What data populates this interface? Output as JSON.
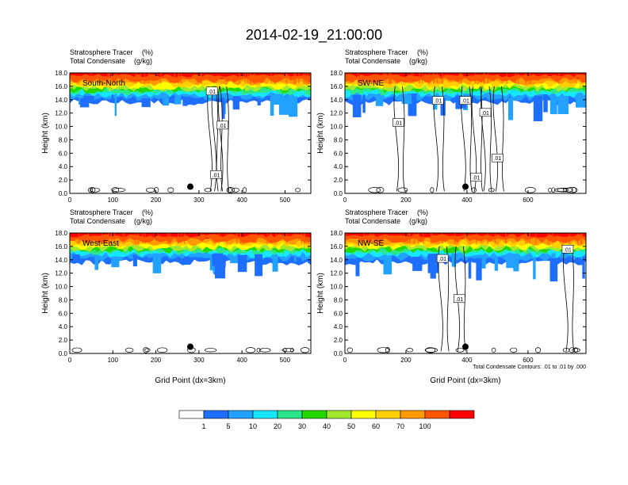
{
  "title": "2014-02-19_21:00:00",
  "colors": {
    "background": "#ffffff",
    "cross_section_label": "#ffffff",
    "contour_line": "#000000",
    "marker": "#000000"
  },
  "chart_data": [
    {
      "type": "heatmap",
      "panel": "top-left",
      "label": "South-North",
      "subtitle_1": "Stratosphere Tracer",
      "unit_1": "(%)",
      "subtitle_2": "Total Condensate",
      "unit_2": "(g/kg)",
      "ylabel": "Height (km)",
      "xlabel": "",
      "xlim": [
        0,
        560
      ],
      "xticks": [
        "0",
        "100",
        "200",
        "300",
        "400",
        "500"
      ],
      "ylim": [
        0,
        18
      ],
      "yticks": [
        "0.0",
        "2.0",
        "4.0",
        "6.0",
        "8.0",
        "10.0",
        "12.0",
        "14.0",
        "16.0",
        "18.0"
      ],
      "marker": {
        "x": 280,
        "y": 1.0
      },
      "contour_labels": [
        {
          "text": ".01",
          "x": 330,
          "y": 15.3
        },
        {
          "text": ".01",
          "x": 355,
          "y": 10.2
        },
        {
          "text": ".01",
          "x": 340,
          "y": 2.8
        }
      ]
    },
    {
      "type": "heatmap",
      "panel": "top-right",
      "label": "SW-NE",
      "subtitle_1": "Stratosphere Tracer",
      "unit_1": "(%)",
      "subtitle_2": "Total Condensate",
      "unit_2": "(g/kg)",
      "ylabel": "Height (km)",
      "xlabel": "",
      "xlim": [
        0,
        790
      ],
      "xticks": [
        "0",
        "200",
        "400",
        "600"
      ],
      "ylim": [
        0,
        18
      ],
      "yticks": [
        "0.0",
        "2.0",
        "4.0",
        "6.0",
        "8.0",
        "10.0",
        "12.0",
        "14.0",
        "16.0",
        "18.0"
      ],
      "marker": {
        "x": 395,
        "y": 1.0
      },
      "contour_labels": [
        {
          "text": ".01",
          "x": 305,
          "y": 13.9
        },
        {
          "text": ".01",
          "x": 395,
          "y": 13.9
        },
        {
          "text": ".01",
          "x": 175,
          "y": 10.6
        },
        {
          "text": ".01",
          "x": 460,
          "y": 12.1
        },
        {
          "text": ".01",
          "x": 500,
          "y": 5.3
        },
        {
          "text": ".01",
          "x": 430,
          "y": 2.4
        }
      ]
    },
    {
      "type": "heatmap",
      "panel": "bottom-left",
      "label": "West-East",
      "subtitle_1": "Stratosphere Tracer",
      "unit_1": "(%)",
      "subtitle_2": "Total Condensate",
      "unit_2": "(g/kg)",
      "ylabel": "Height (km)",
      "xlabel": "Grid Point (dx=3km)",
      "xlim": [
        0,
        560
      ],
      "xticks": [
        "0",
        "100",
        "200",
        "300",
        "400",
        "500"
      ],
      "ylim": [
        0,
        18
      ],
      "yticks": [
        "0.0",
        "2.0",
        "4.0",
        "6.0",
        "8.0",
        "10.0",
        "12.0",
        "14.0",
        "16.0",
        "18.0"
      ],
      "marker": {
        "x": 280,
        "y": 1.0
      },
      "contour_labels": []
    },
    {
      "type": "heatmap",
      "panel": "bottom-right",
      "label": "NW-SE",
      "subtitle_1": "Stratosphere Tracer",
      "unit_1": "(%)",
      "subtitle_2": "Total Condensate",
      "unit_2": "(g/kg)",
      "ylabel": "Height (km)",
      "xlabel": "Grid Point (dx=3km)",
      "xlim": [
        0,
        790
      ],
      "xticks": [
        "0",
        "200",
        "400",
        "600"
      ],
      "ylim": [
        0,
        18
      ],
      "yticks": [
        "0.0",
        "2.0",
        "4.0",
        "6.0",
        "8.0",
        "10.0",
        "12.0",
        "14.0",
        "16.0",
        "18.0"
      ],
      "marker": {
        "x": 395,
        "y": 1.0
      },
      "contour_labels": [
        {
          "text": ".01",
          "x": 320,
          "y": 14.2
        },
        {
          "text": ".01",
          "x": 375,
          "y": 8.2
        },
        {
          "text": ".01",
          "x": 730,
          "y": 15.6
        }
      ],
      "note": "Total Condensate Contours: .01 to .01 by .000"
    }
  ],
  "colorbar": {
    "levels": [
      "1",
      "5",
      "10",
      "20",
      "30",
      "40",
      "50",
      "60",
      "70",
      "100"
    ],
    "colors": [
      "#ffffff",
      "#1e6eff",
      "#22a2ff",
      "#17e6ff",
      "#2ae88a",
      "#23d900",
      "#a2e82c",
      "#ffff00",
      "#ffcf00",
      "#ff9a00",
      "#ff5500",
      "#ff0000"
    ]
  }
}
